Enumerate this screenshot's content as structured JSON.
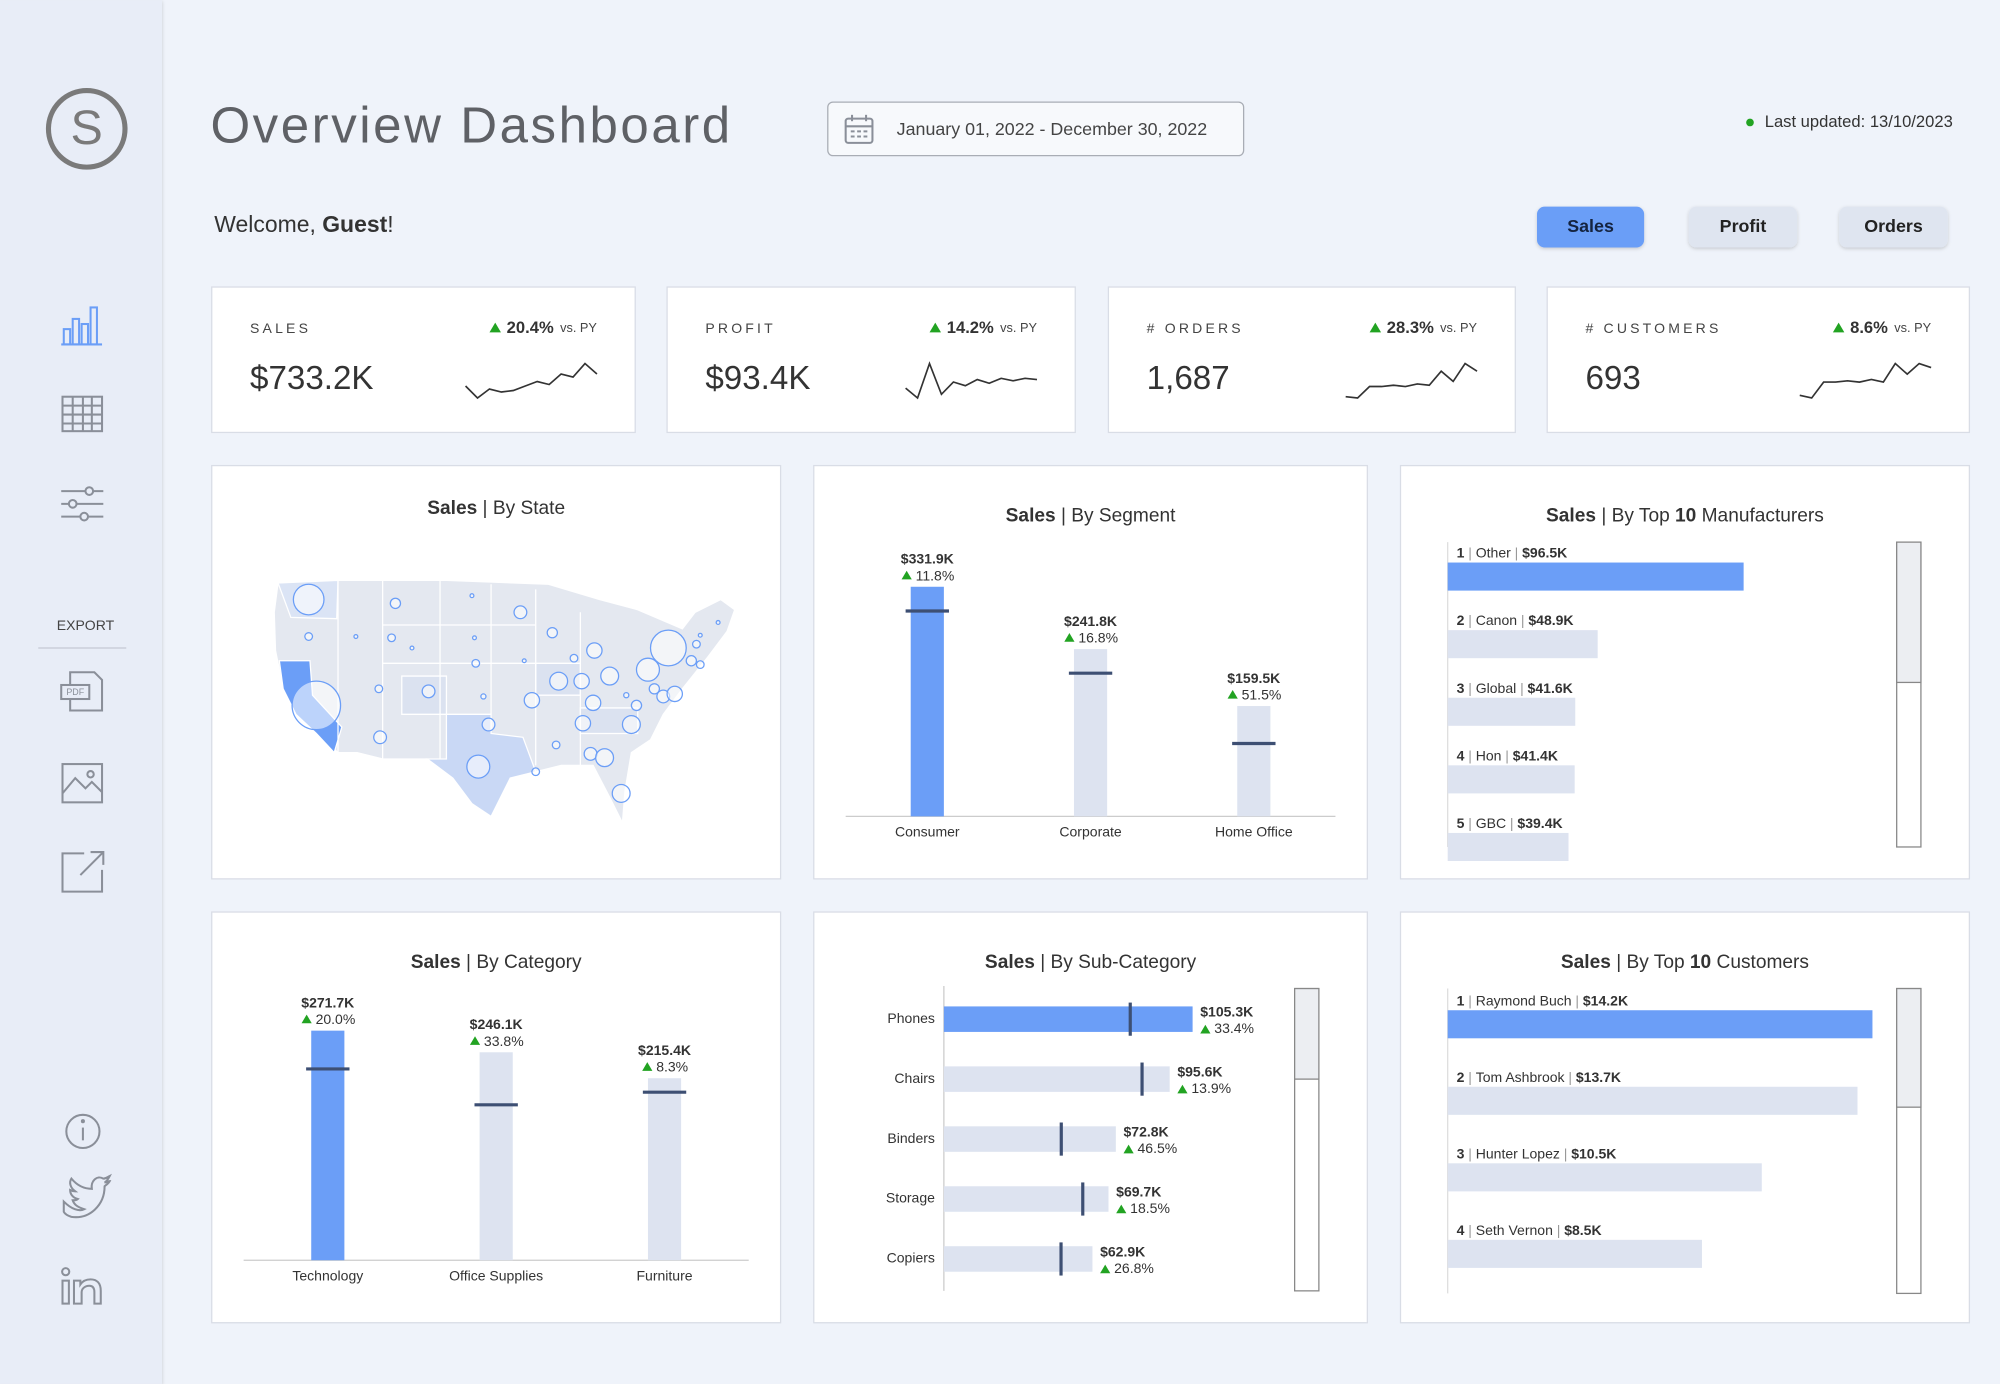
{
  "sidebar": {
    "logo_letter": "S",
    "export_label": "EXPORT",
    "pdf_icon_label": "PDF"
  },
  "header": {
    "title": "Overview Dashboard",
    "date_range": "January 01, 2022 - December 30, 2022",
    "last_updated": "Last updated: 13/10/2023",
    "welcome": "Welcome,",
    "user": "Guest",
    "user_suffix": "!"
  },
  "measure_buttons": [
    "Sales",
    "Profit",
    "Orders"
  ],
  "kpis": [
    {
      "label": "SALES",
      "value": "$733.2K",
      "change": "20.4%",
      "comparison": "vs. PY",
      "trend": [
        30,
        22,
        28,
        26,
        27,
        30,
        33,
        31,
        38,
        36,
        45,
        38
      ]
    },
    {
      "label": "PROFIT",
      "value": "$93.4K",
      "change": "14.2%",
      "comparison": "vs. PY",
      "trend": [
        10,
        2,
        30,
        5,
        15,
        12,
        17,
        14,
        18,
        16,
        18,
        17
      ]
    },
    {
      "label": "# ORDERS",
      "value": "1,687",
      "change": "28.3%",
      "comparison": "vs. PY",
      "trend": [
        10,
        9,
        18,
        18,
        19,
        18,
        20,
        19,
        30,
        22,
        36,
        30
      ]
    },
    {
      "label": "# CUSTOMERS",
      "value": "693",
      "change": "8.6%",
      "comparison": "vs. PY",
      "trend": [
        10,
        8,
        20,
        20,
        21,
        20,
        22,
        20,
        34,
        26,
        34,
        31
      ]
    }
  ],
  "chart_data": [
    {
      "type": "map",
      "title": [
        {
          "text": "Sales",
          "bold": true
        },
        {
          "text": " | By State"
        }
      ]
    },
    {
      "type": "column",
      "title": [
        {
          "text": "Sales",
          "bold": true
        },
        {
          "text": " | By Segment"
        }
      ],
      "categories": [
        "Consumer",
        "Corporate",
        "Home Office"
      ],
      "values": [
        331900,
        241800,
        159500
      ],
      "value_labels": [
        "$331.9K",
        "$241.8K",
        "$159.5K"
      ],
      "change_labels": [
        "11.8%",
        "16.8%",
        "51.5%"
      ],
      "py_values": [
        296900,
        207000,
        105300
      ],
      "highlight_color": "#6b9ef7",
      "color": "#dde3f0",
      "target_color": "#3d4f73"
    },
    {
      "type": "ranked_bar",
      "title": [
        {
          "text": "Sales",
          "bold": true
        },
        {
          "text": " | By Top "
        },
        {
          "text": "10",
          "bold": true
        },
        {
          "text": " Manufacturers"
        }
      ],
      "ranks": [
        1,
        2,
        3,
        4,
        5
      ],
      "separator": "|",
      "categories": [
        "Other",
        "Canon",
        "Global",
        "Hon",
        "GBC"
      ],
      "values": [
        96500,
        48900,
        41600,
        41400,
        39400
      ],
      "value_labels": [
        "$96.5K",
        "$48.9K",
        "$41.6K",
        "$41.4K",
        "$39.4K"
      ],
      "highlight_color": "#6b9ef7",
      "color": "#dde3f0"
    },
    {
      "type": "column",
      "title": [
        {
          "text": "Sales",
          "bold": true
        },
        {
          "text": " | By Category"
        }
      ],
      "categories": [
        "Technology",
        "Office Supplies",
        "Furniture"
      ],
      "values": [
        271700,
        246100,
        215400
      ],
      "value_labels": [
        "$271.7K",
        "$246.1K",
        "$215.4K"
      ],
      "change_labels": [
        "20.0%",
        "33.8%",
        "8.3%"
      ],
      "py_values": [
        226400,
        183900,
        198900
      ],
      "highlight_color": "#6b9ef7",
      "color": "#dde3f0",
      "target_color": "#3d4f73"
    },
    {
      "type": "bar",
      "title": [
        {
          "text": "Sales",
          "bold": true
        },
        {
          "text": " | By Sub-Category"
        }
      ],
      "categories": [
        "Phones",
        "Chairs",
        "Binders",
        "Storage",
        "Copiers"
      ],
      "values": [
        105300,
        95600,
        72800,
        69700,
        62900
      ],
      "value_labels": [
        "$105.3K",
        "$95.6K",
        "$72.8K",
        "$69.7K",
        "$62.9K"
      ],
      "change_labels": [
        "33.4%",
        "13.9%",
        "46.5%",
        "18.5%",
        "26.8%"
      ],
      "py_values": [
        78900,
        83900,
        49700,
        58800,
        49600
      ],
      "highlight_color": "#6b9ef7",
      "color": "#dde3f0",
      "target_color": "#3d4f73"
    },
    {
      "type": "ranked_bar",
      "title": [
        {
          "text": "Sales",
          "bold": true
        },
        {
          "text": " | By Top "
        },
        {
          "text": "10",
          "bold": true
        },
        {
          "text": " Customers"
        }
      ],
      "ranks": [
        1,
        2,
        3,
        4
      ],
      "separator": "|",
      "categories": [
        "Raymond Buch",
        "Tom Ashbrook",
        "Hunter Lopez",
        "Seth Vernon"
      ],
      "values": [
        14200,
        13700,
        10500,
        8500
      ],
      "value_labels": [
        "$14.2K",
        "$13.7K",
        "$10.5K",
        "$8.5K"
      ],
      "highlight_color": "#6b9ef7",
      "color": "#dde3f0"
    }
  ]
}
